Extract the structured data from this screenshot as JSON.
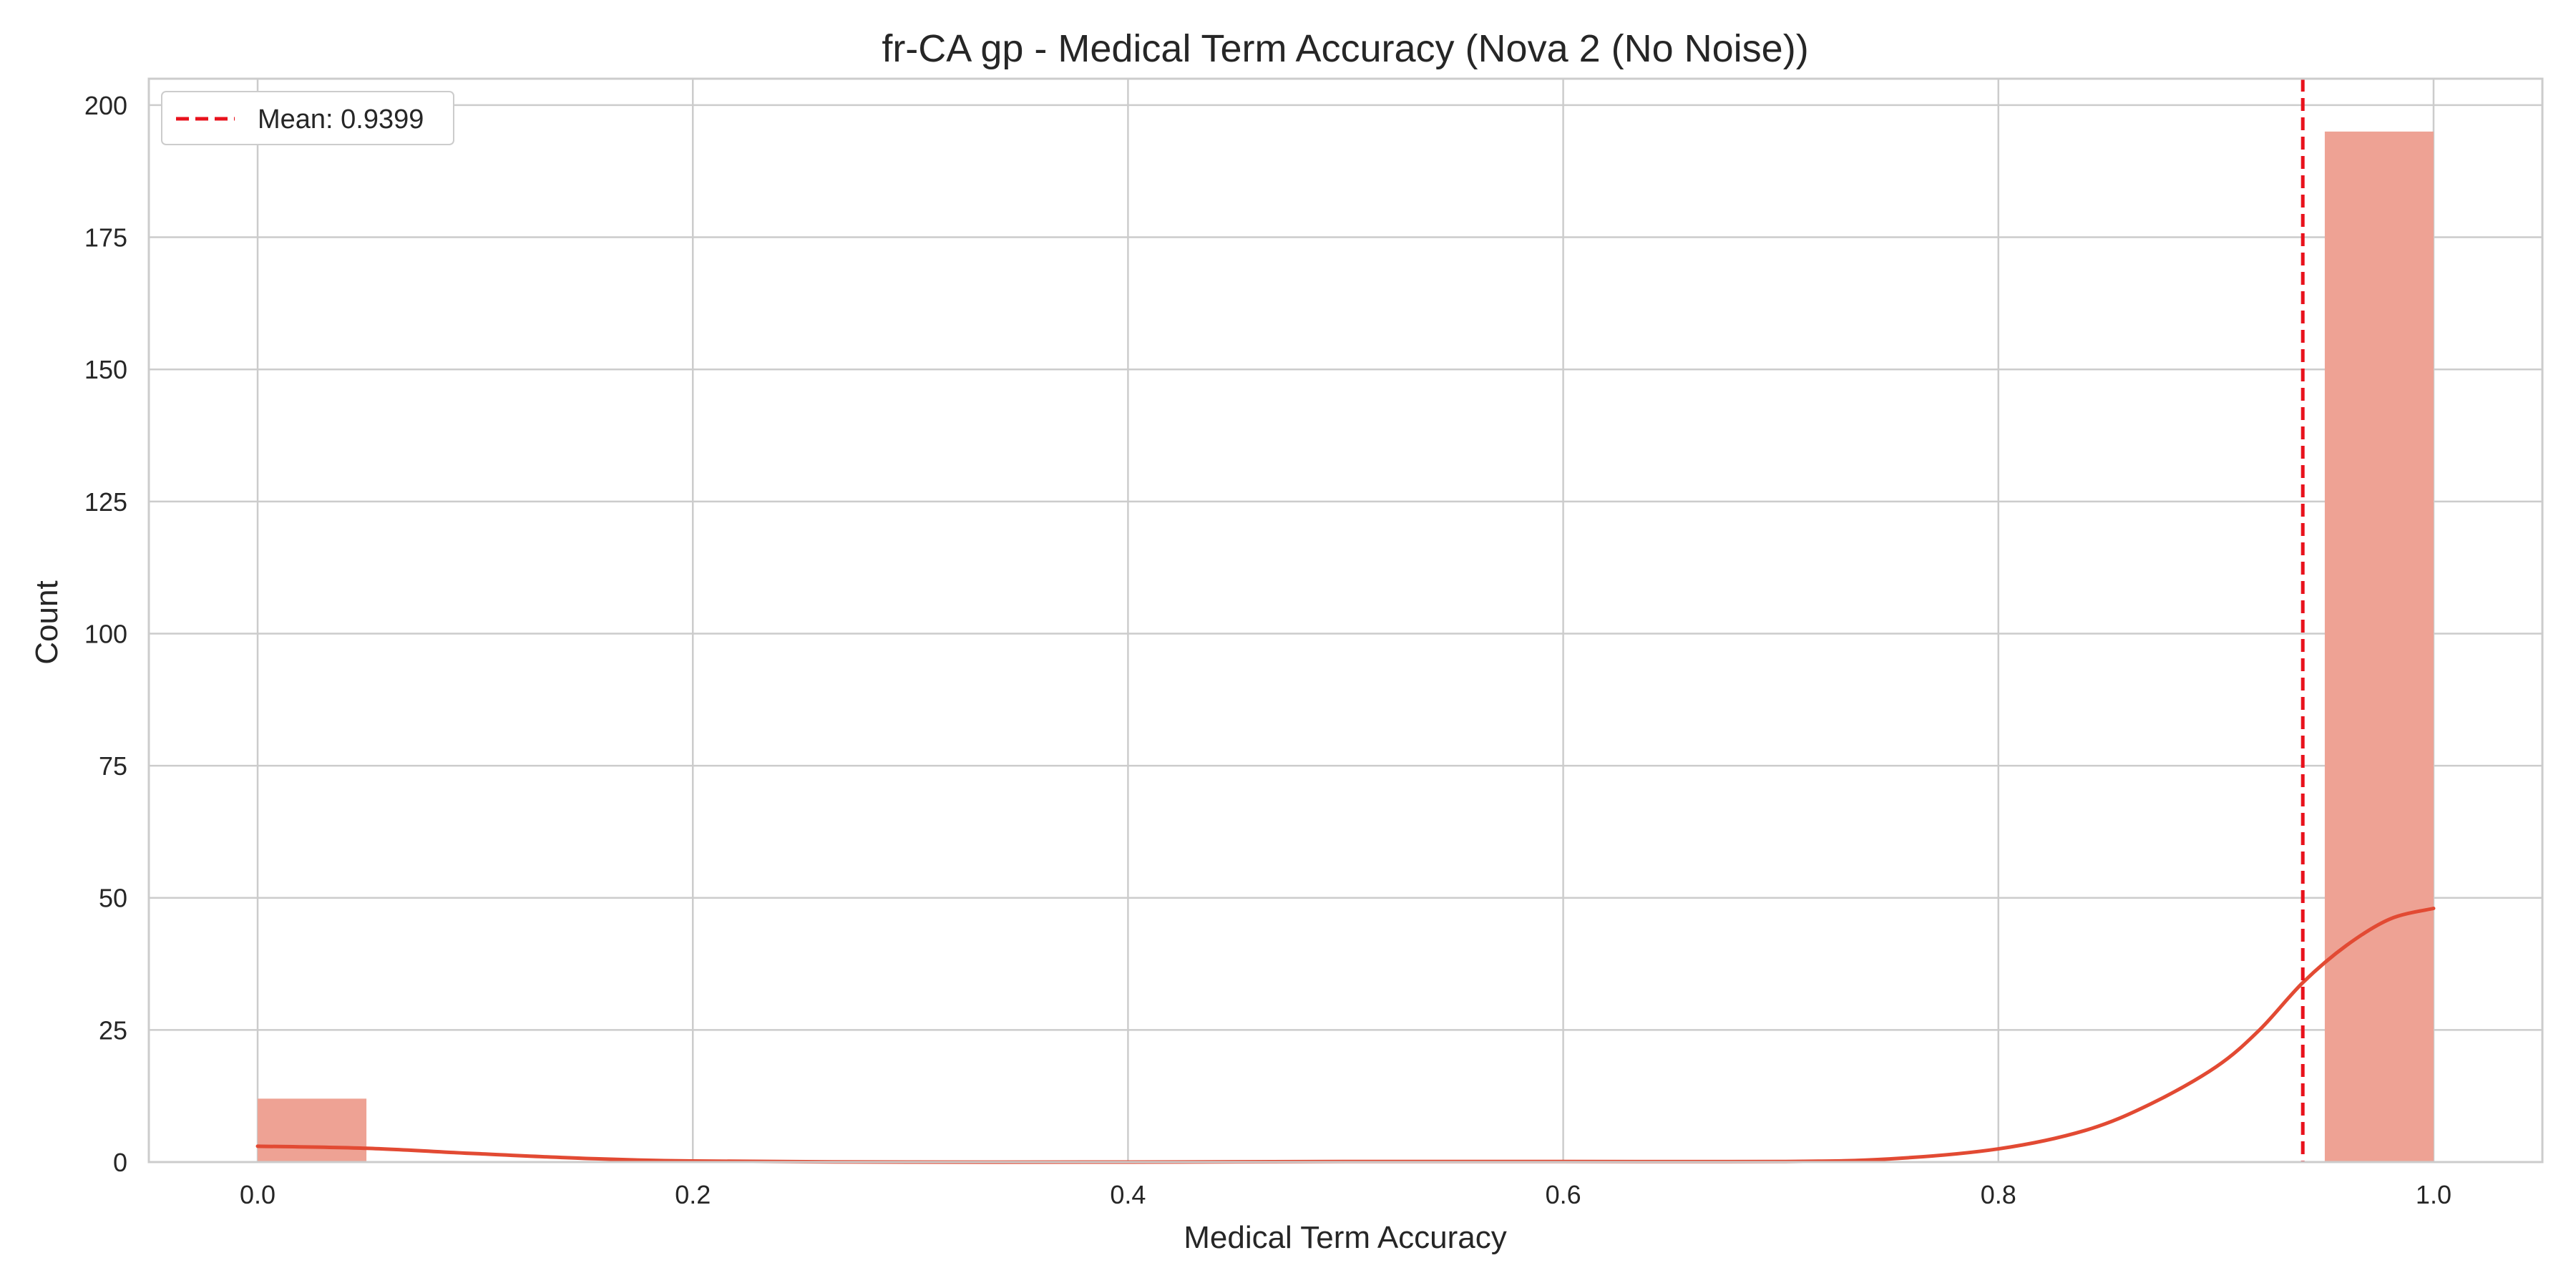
{
  "chart_data": {
    "type": "bar",
    "subtype": "histogram-with-kde",
    "title": "fr-CA gp - Medical Term Accuracy (Nova 2 (No Noise))",
    "xlabel": "Medical Term Accuracy",
    "ylabel": "Count",
    "xlim": [
      -0.05,
      1.05
    ],
    "ylim": [
      0,
      205
    ],
    "xticks": [
      0.0,
      0.2,
      0.4,
      0.6,
      0.8,
      1.0
    ],
    "xtick_labels": [
      "0.0",
      "0.2",
      "0.4",
      "0.6",
      "0.8",
      "1.0"
    ],
    "yticks": [
      0,
      25,
      50,
      75,
      100,
      125,
      150,
      175,
      200
    ],
    "ytick_labels": [
      "0",
      "25",
      "50",
      "75",
      "100",
      "125",
      "150",
      "175",
      "200"
    ],
    "grid": true,
    "bin_width": 0.05,
    "bins": [
      {
        "start": 0.0,
        "end": 0.05,
        "count": 12
      },
      {
        "start": 0.5,
        "end": 0.55,
        "count": 0.3
      },
      {
        "start": 0.95,
        "end": 1.0,
        "count": 195
      }
    ],
    "kde": [
      [
        0.0,
        3.0
      ],
      [
        0.05,
        2.6
      ],
      [
        0.1,
        1.6
      ],
      [
        0.15,
        0.7
      ],
      [
        0.2,
        0.2
      ],
      [
        0.3,
        0.0
      ],
      [
        0.4,
        0.0
      ],
      [
        0.5,
        0.1
      ],
      [
        0.6,
        0.1
      ],
      [
        0.7,
        0.1
      ],
      [
        0.75,
        0.6
      ],
      [
        0.8,
        2.5
      ],
      [
        0.84,
        6.0
      ],
      [
        0.87,
        11.0
      ],
      [
        0.9,
        18.0
      ],
      [
        0.92,
        25.0
      ],
      [
        0.94,
        34.0
      ],
      [
        0.96,
        41.0
      ],
      [
        0.98,
        46.0
      ],
      [
        1.0,
        48.0
      ]
    ],
    "mean": 0.9399,
    "legend": {
      "placement": "top-left",
      "entries": [
        "Mean: 0.9399"
      ]
    },
    "colors": {
      "bar": "#eea294",
      "kde": "#e24a33",
      "mean_line": "#e8121c",
      "grid": "#cccccc",
      "spine": "#cccccc",
      "text": "#262626"
    }
  }
}
